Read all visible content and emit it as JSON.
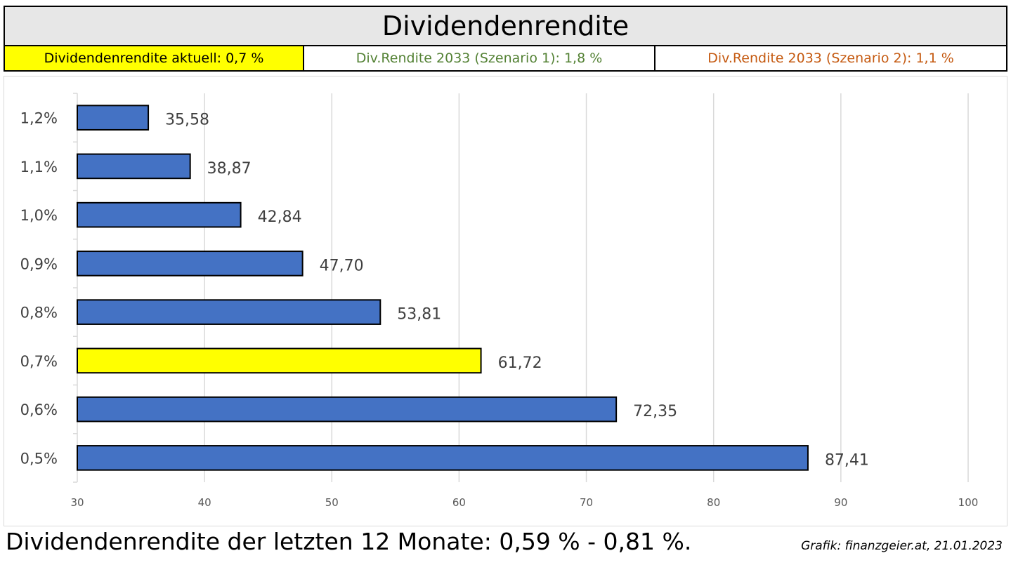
{
  "header": {
    "title": "Dividendenrendite",
    "current": "Dividendenrendite aktuell: 0,7 %",
    "scenario1": "Div.Rendite 2033 (Szenario 1): 1,8 %",
    "scenario2": "Div.Rendite 2033 (Szenario 2): 1,1 %"
  },
  "footer": {
    "summary": "Dividendenrendite der letzten 12 Monate: 0,59 % - 0,81 %.",
    "credit": "Grafik: finanzgeier.at, 21.01.2023"
  },
  "colors": {
    "bar": "#4472c4",
    "highlight": "#ffff00",
    "scenario1_text": "#548235",
    "scenario2_text": "#c55a11"
  },
  "chart_data": {
    "type": "bar",
    "orientation": "horizontal",
    "categories": [
      "1,2%",
      "1,1%",
      "1,0%",
      "0,9%",
      "0,8%",
      "0,7%",
      "0,6%",
      "0,5%"
    ],
    "values": [
      35.58,
      38.87,
      42.84,
      47.7,
      53.81,
      61.72,
      72.35,
      87.41
    ],
    "value_labels": [
      "35,58",
      "38,87",
      "42,84",
      "47,70",
      "53,81",
      "61,72",
      "72,35",
      "87,41"
    ],
    "highlight_category": "0,7%",
    "xlim": [
      30,
      100
    ],
    "xticks": [
      30,
      40,
      50,
      60,
      70,
      80,
      90,
      100
    ],
    "grid": true,
    "legend": "none",
    "title": "",
    "xlabel": "",
    "ylabel": ""
  }
}
